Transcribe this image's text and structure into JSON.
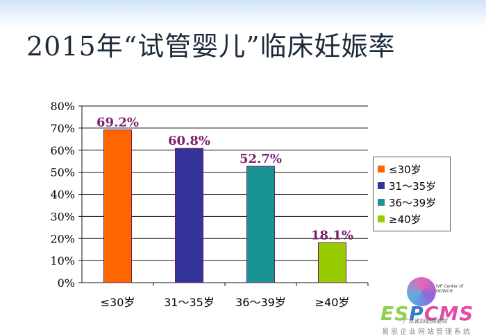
{
  "slide": {
    "title": "2015年“试管婴儿”临床妊娠率"
  },
  "chart_data": {
    "type": "bar",
    "categories": [
      "≤30岁",
      "31～35岁",
      "36～39岁",
      "≥40岁"
    ],
    "values": [
      69.2,
      60.8,
      52.7,
      18.1
    ],
    "value_labels": [
      "69.2%",
      "60.8%",
      "52.7%",
      "18.1%"
    ],
    "colors": [
      "#ff6600",
      "#333399",
      "#199393",
      "#99cc00"
    ],
    "label_color": "#7b1f6e",
    "ylim": [
      0,
      80
    ],
    "yticks": [
      0,
      10,
      20,
      30,
      40,
      50,
      60,
      70,
      80
    ],
    "ytick_labels": [
      "0%",
      "10%",
      "20%",
      "30%",
      "40%",
      "50%",
      "60%",
      "70%",
      "80%"
    ],
    "title": "",
    "xlabel": "",
    "ylabel": "",
    "grid": true,
    "legend": {
      "position": "right",
      "items": [
        "≤30岁",
        "31～35岁",
        "36～39岁",
        "≥40岁"
      ]
    }
  },
  "logo": {
    "center_text": "IVF Center of GDWCH",
    "brand_part1": "ES",
    "brand_part2": "P",
    "brand_part3": "CMS",
    "tagline": "易思企业网站管理系统",
    "signature": "广东省妇幼保健院"
  }
}
